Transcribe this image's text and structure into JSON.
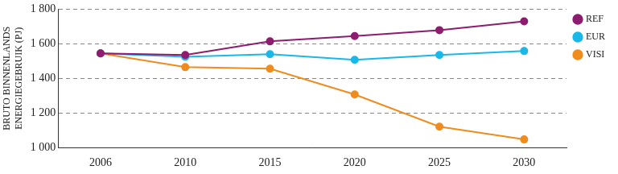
{
  "chart_data": {
    "type": "line",
    "y_label": [
      "BRUTO BINNENLANDS",
      "ENERGIEGEBRUIK (PJ)"
    ],
    "categories": [
      "2006",
      "2010",
      "2015",
      "2020",
      "2025",
      "2030"
    ],
    "series": [
      {
        "name": "REF",
        "color": "#8e1d6f",
        "values": [
          1545,
          1535,
          1614,
          1645,
          1679,
          1730
        ]
      },
      {
        "name": "EUR",
        "color": "#1ab8e8",
        "values": [
          1545,
          1525,
          1540,
          1507,
          1535,
          1558
        ]
      },
      {
        "name": "VISI",
        "color": "#f08c1e",
        "values": [
          1545,
          1465,
          1456,
          1307,
          1121,
          1047
        ]
      }
    ],
    "ylim": [
      1000,
      1800
    ],
    "yticks": [
      {
        "value": 1000,
        "label": "1 000"
      },
      {
        "value": 1200,
        "label": "1 200"
      },
      {
        "value": 1400,
        "label": "1 400"
      },
      {
        "value": 1600,
        "label": "1 600"
      },
      {
        "value": 1800,
        "label": "1 800"
      }
    ],
    "grid": true,
    "legend": "upper right",
    "marker": "circle"
  }
}
